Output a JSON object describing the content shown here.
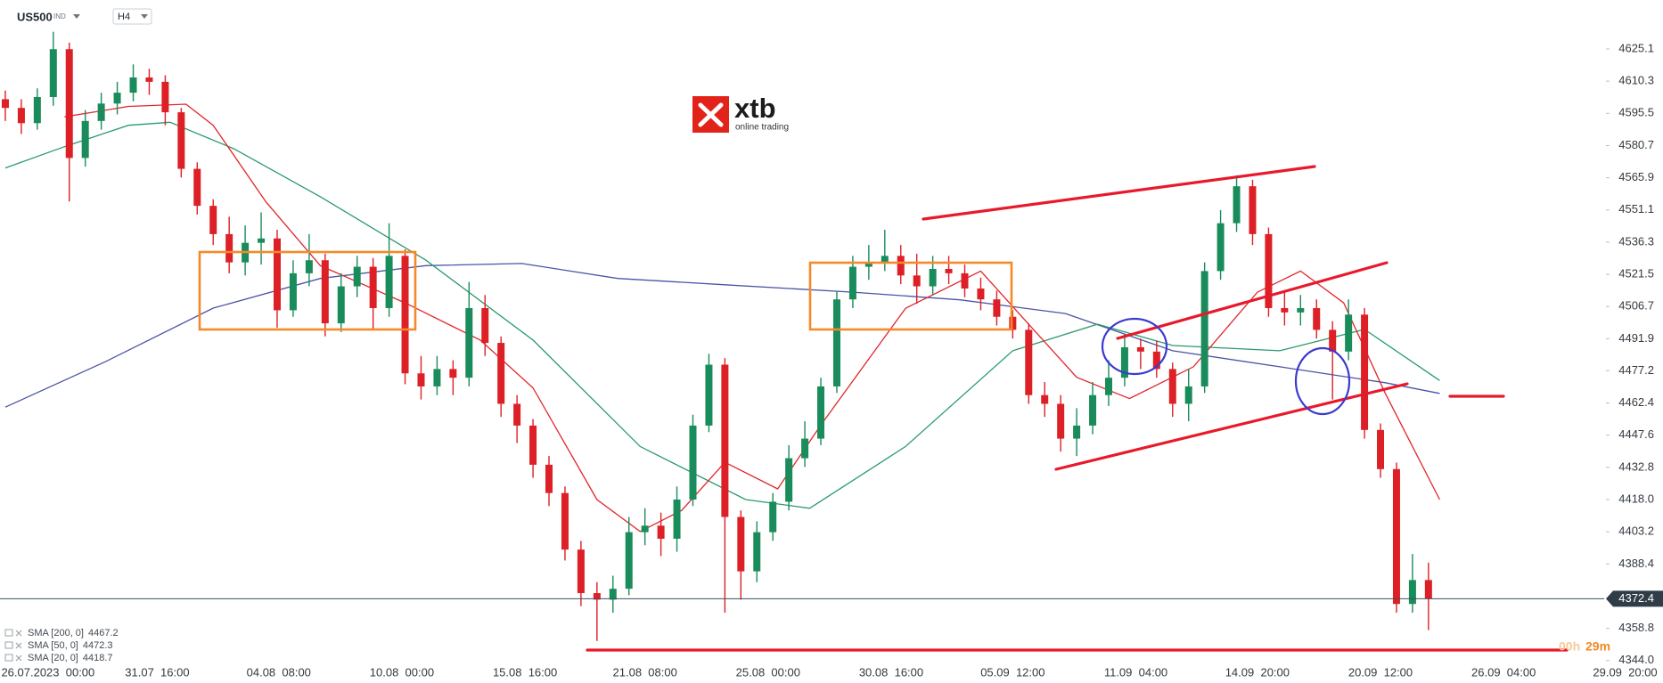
{
  "chart_data": {
    "type": "candlestick",
    "symbol": "US500",
    "market": "IND",
    "interval": "H4",
    "up_color": "#1a8c5b",
    "down_color": "#dd1f26",
    "open": [
      4602,
      4598,
      4591,
      4603,
      4625,
      4575,
      4592,
      4600,
      4605,
      4612,
      4610,
      4596,
      4570,
      4553,
      4540,
      4527,
      4536,
      4538,
      4505,
      4522,
      4528,
      4499,
      4516,
      4525,
      4506,
      4530,
      4476,
      4470,
      4478,
      4474,
      4506,
      4490,
      4462,
      4452,
      4434,
      4421,
      4395,
      4375,
      4372,
      4377,
      4403,
      4406,
      4400,
      4418,
      4452,
      4480,
      4410,
      4385,
      4403,
      4417,
      4437,
      4446,
      4470,
      4510,
      4525,
      4527,
      4530,
      4521,
      4516,
      4524,
      4522,
      4515,
      4510,
      4502,
      4496,
      4466,
      4462,
      4446,
      4452,
      4466,
      4474,
      4488,
      4486,
      4478,
      4462,
      4470,
      4523,
      4545,
      4562,
      4540,
      4506,
      4504,
      4506,
      4496,
      4486,
      4503,
      4450,
      4432,
      4370,
      4381
    ],
    "high": [
      4606,
      4602,
      4607,
      4633,
      4628,
      4597,
      4605,
      4610,
      4618,
      4616,
      4613,
      4598,
      4573,
      4556,
      4548,
      4544,
      4550,
      4542,
      4528,
      4540,
      4531,
      4522,
      4530,
      4529,
      4545,
      4533,
      4484,
      4484,
      4482,
      4518,
      4512,
      4493,
      4466,
      4455,
      4438,
      4424,
      4399,
      4380,
      4383,
      4410,
      4414,
      4412,
      4424,
      4457,
      4485,
      4483,
      4413,
      4408,
      4421,
      4443,
      4454,
      4474,
      4514,
      4530,
      4535,
      4542,
      4535,
      4531,
      4530,
      4530,
      4526,
      4520,
      4514,
      4505,
      4499,
      4472,
      4466,
      4460,
      4472,
      4482,
      4494,
      4492,
      4491,
      4481,
      4478,
      4527,
      4551,
      4567,
      4565,
      4543,
      4514,
      4512,
      4510,
      4500,
      4510,
      4506,
      4453,
      4435,
      4393,
      4389
    ],
    "low": [
      4592,
      4586,
      4588,
      4599,
      4555,
      4571,
      4588,
      4595,
      4601,
      4604,
      4590,
      4566,
      4549,
      4535,
      4522,
      4521,
      4526,
      4497,
      4502,
      4516,
      4493,
      4495,
      4511,
      4496,
      4502,
      4471,
      4464,
      4466,
      4466,
      4470,
      4484,
      4456,
      4444,
      4428,
      4415,
      4390,
      4369,
      4353,
      4366,
      4374,
      4397,
      4392,
      4394,
      4415,
      4449,
      4366,
      4372,
      4380,
      4399,
      4413,
      4433,
      4443,
      4467,
      4506,
      4519,
      4523,
      4517,
      4508,
      4512,
      4517,
      4511,
      4505,
      4498,
      4492,
      4462,
      4456,
      4440,
      4438,
      4448,
      4461,
      4470,
      4478,
      4474,
      4456,
      4454,
      4467,
      4519,
      4541,
      4535,
      4502,
      4498,
      4498,
      4492,
      4464,
      4482,
      4446,
      4428,
      4366,
      4366,
      4358
    ],
    "close": [
      4598,
      4591,
      4603,
      4625,
      4575,
      4592,
      4600,
      4605,
      4612,
      4610,
      4596,
      4570,
      4553,
      4540,
      4527,
      4536,
      4538,
      4505,
      4522,
      4528,
      4499,
      4516,
      4525,
      4506,
      4530,
      4476,
      4470,
      4478,
      4474,
      4506,
      4490,
      4462,
      4452,
      4434,
      4421,
      4395,
      4375,
      4372,
      4377,
      4403,
      4406,
      4400,
      4418,
      4452,
      4480,
      4410,
      4385,
      4403,
      4417,
      4437,
      4446,
      4470,
      4510,
      4525,
      4527,
      4530,
      4521,
      4516,
      4524,
      4522,
      4515,
      4510,
      4502,
      4496,
      4466,
      4462,
      4446,
      4452,
      4466,
      4474,
      4488,
      4486,
      4478,
      4462,
      4470,
      4523,
      4545,
      4562,
      4540,
      4506,
      4504,
      4506,
      4496,
      4486,
      4503,
      4450,
      4432,
      4370,
      4381,
      4372.4
    ],
    "series": [
      {
        "name": "SMA [200, 0]",
        "color": "#4b53a6",
        "last_value": 4467.2,
        "x": [
          0,
          6.3,
          13,
          19.7,
          26.3,
          32.3,
          38.3,
          45,
          53,
          59.7,
          66.3,
          73,
          79.7,
          86.3,
          89.7
        ],
        "values": [
          4460.5,
          4481.5,
          4506,
          4519.6,
          4525.5,
          4526.5,
          4519.6,
          4516.7,
          4513.3,
          4509.8,
          4503.5,
          4486.4,
          4479,
          4471.7,
          4466.8
        ]
      },
      {
        "name": "SMA [50, 0]",
        "color": "#2a9a6b",
        "last_value": 4472.3,
        "x": [
          0,
          3.7,
          7.7,
          10.3,
          14.3,
          19.7,
          26.3,
          33,
          39.7,
          46.3,
          50.3,
          56.3,
          63,
          68.3,
          73,
          79.7,
          85,
          89.7
        ],
        "values": [
          4570.4,
          4580.2,
          4590,
          4591.4,
          4579.2,
          4557.2,
          4528,
          4491.3,
          4442.4,
          4418,
          4414,
          4442.4,
          4486.4,
          4498.6,
          4488.8,
          4486.4,
          4496.2,
          4472.7
        ]
      },
      {
        "name": "SMA [20, 0]",
        "color": "#e0262b",
        "last_value": 4418.7,
        "x": [
          3.7,
          7.7,
          11.3,
          13,
          16.3,
          19.7,
          25,
          29.7,
          33,
          37,
          39.7,
          42.3,
          45,
          48.3,
          51,
          56.3,
          61,
          63.7,
          67,
          70.3,
          74.3,
          78.3,
          81,
          83.7,
          86.3,
          89.7
        ],
        "values": [
          4593.9,
          4598.7,
          4599.7,
          4590,
          4554.8,
          4525.5,
          4508.4,
          4491.3,
          4469.3,
          4418,
          4403.3,
          4413,
          4435.1,
          4422.9,
          4452.2,
          4505.9,
          4523,
          4501,
          4474.2,
          4464.4,
          4479,
          4513.3,
          4523,
          4508.4,
          4466.8,
          4418
        ]
      }
    ],
    "current_price": 4372.4,
    "timer_hours": "00h",
    "timer_minutes": "29m",
    "xlim": [
      -0.333,
      103.667
    ],
    "ylim": [
      4343.1,
      4647.6
    ],
    "xticks": [
      {
        "value": 2.67,
        "label": "26.07.2023  00:00"
      },
      {
        "value": 9.5,
        "label": "31.07  16:00"
      },
      {
        "value": 17.1,
        "label": "04.08  08:00"
      },
      {
        "value": 24.8,
        "label": "10.08  00:00"
      },
      {
        "value": 32.5,
        "label": "15.08  16:00"
      },
      {
        "value": 40,
        "label": "21.08  08:00"
      },
      {
        "value": 47.7,
        "label": "25.08  00:00"
      },
      {
        "value": 55.4,
        "label": "30.08  16:00"
      },
      {
        "value": 63,
        "label": "05.09  12:00"
      },
      {
        "value": 70.7,
        "label": "11.09  04:00"
      },
      {
        "value": 78.3,
        "label": "14.09  20:00"
      },
      {
        "value": 86,
        "label": "20.09  12:00"
      },
      {
        "value": 93.7,
        "label": "26.09  04:00"
      },
      {
        "value": 101.3,
        "label": "29.09  20:00"
      }
    ],
    "yticks": [
      {
        "value": 4344,
        "label": "4344.0"
      },
      4358.8,
      4388.4,
      4403.2,
      {
        "value": 4418,
        "label": "4418.0"
      },
      4432.8,
      4447.6,
      4462.4,
      4477.2,
      4491.9,
      4506.7,
      4521.5,
      4536.3,
      4551.1,
      4565.9,
      4580.7,
      4595.5,
      4610.3,
      4625.1
    ]
  },
  "logo": {
    "name": "xtb",
    "tagline": "online trading"
  }
}
